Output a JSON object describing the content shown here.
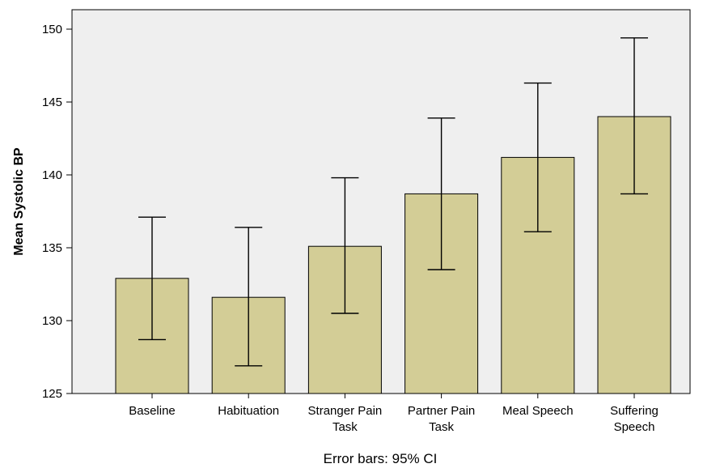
{
  "chart_data": {
    "type": "bar",
    "categories": [
      [
        "Baseline"
      ],
      [
        "Habituation"
      ],
      [
        "Stranger Pain",
        "Task"
      ],
      [
        "Partner Pain",
        "Task"
      ],
      [
        "Meal Speech"
      ],
      [
        "Suffering",
        "Speech"
      ]
    ],
    "values": [
      132.9,
      131.6,
      135.1,
      138.7,
      141.2,
      144.0
    ],
    "error_low": [
      128.7,
      126.9,
      130.5,
      133.5,
      136.1,
      138.7
    ],
    "error_high": [
      137.1,
      136.4,
      139.8,
      143.9,
      146.3,
      149.4
    ],
    "ylabel": "Mean Systolic BP",
    "xlabel": "",
    "caption": "Error bars: 95% CI",
    "ylim": [
      125,
      152
    ],
    "yticks": [
      125,
      130,
      135,
      140,
      145,
      150
    ],
    "grid": false,
    "colors": {
      "bar_fill": "#d3cd96",
      "plot_background": "#efefef"
    }
  }
}
